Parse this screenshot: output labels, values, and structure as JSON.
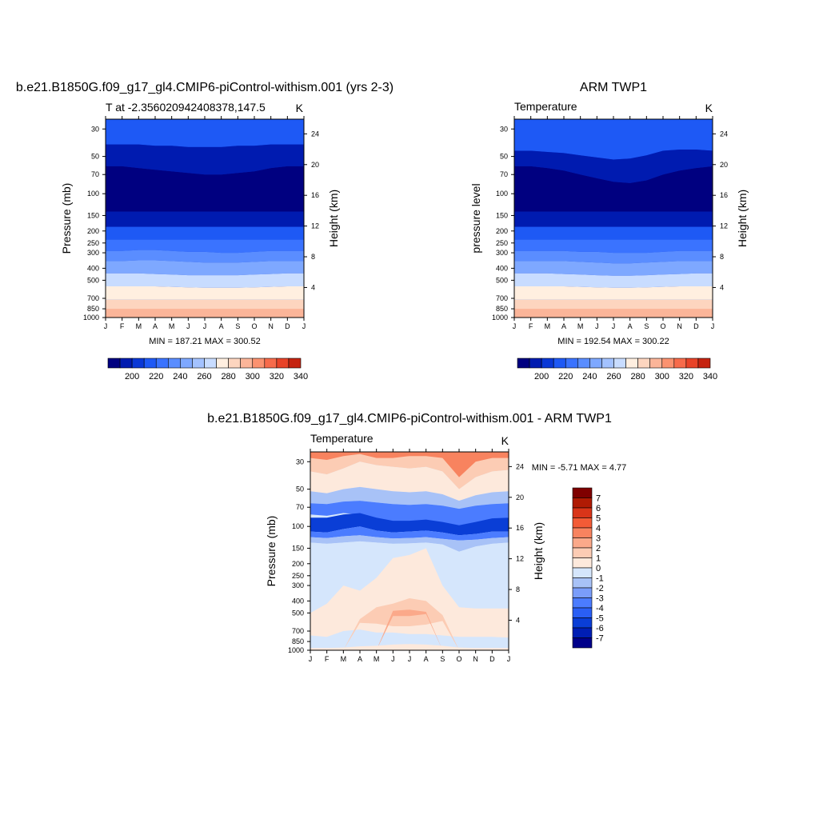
{
  "chart_data": [
    {
      "type": "heatmap",
      "title": "b.e21.B1850G.f09_g17_gl4.CMIP6-piControl-withism.001 (yrs 2-3)",
      "subtitle_left": "T at -2.356020942408378,147.5",
      "subtitle_right": "K",
      "xlabel": "",
      "ylabel": "Pressure (mb)",
      "ylabel_right": "Height (km)",
      "x_ticks": [
        "J",
        "F",
        "M",
        "A",
        "M",
        "J",
        "J",
        "A",
        "S",
        "O",
        "N",
        "D",
        "J"
      ],
      "y_ticks": [
        30,
        50,
        70,
        100,
        150,
        200,
        250,
        300,
        400,
        500,
        700,
        850,
        1000
      ],
      "y_ticks_right": [
        24,
        20,
        16,
        12,
        8,
        4
      ],
      "y_scale": "log",
      "ylim": [
        1000,
        25
      ],
      "stats": "MIN = 187.21 MAX = 300.52",
      "colorbar_labels": [
        "200",
        "220",
        "240",
        "260",
        "280",
        "300",
        "320",
        "340"
      ],
      "levels": [
        190,
        200,
        210,
        220,
        230,
        240,
        250,
        260,
        270,
        280,
        290,
        300,
        310,
        320,
        330,
        340
      ],
      "band_boundaries": [
        {
          "temp": 200,
          "pressure": [
            40,
            40,
            40,
            41,
            41,
            42,
            42,
            42,
            41,
            41,
            40,
            40,
            40
          ]
        },
        {
          "temp": 190,
          "pressure": [
            60,
            60,
            62,
            64,
            66,
            68,
            70,
            70,
            68,
            66,
            62,
            60,
            60
          ]
        },
        {
          "temp": 195,
          "pressure": [
            140,
            140,
            140,
            140,
            140,
            140,
            140,
            140,
            140,
            140,
            140,
            140,
            140
          ]
        },
        {
          "temp": 205,
          "pressure": [
            185,
            185,
            185,
            185,
            185,
            185,
            185,
            185,
            185,
            185,
            185,
            185,
            185
          ]
        },
        {
          "temp": 215,
          "pressure": [
            235,
            235,
            235,
            235,
            235,
            235,
            235,
            235,
            235,
            235,
            235,
            235,
            235
          ]
        },
        {
          "temp": 225,
          "pressure": [
            290,
            290,
            285,
            285,
            290,
            295,
            295,
            300,
            300,
            295,
            290,
            290,
            290
          ]
        },
        {
          "temp": 235,
          "pressure": [
            350,
            350,
            345,
            345,
            350,
            355,
            360,
            360,
            360,
            355,
            350,
            350,
            350
          ]
        },
        {
          "temp": 250,
          "pressure": [
            440,
            440,
            440,
            445,
            450,
            455,
            455,
            455,
            455,
            450,
            445,
            440,
            440
          ]
        },
        {
          "temp": 270,
          "pressure": [
            560,
            560,
            560,
            560,
            565,
            570,
            575,
            575,
            575,
            570,
            565,
            560,
            560
          ]
        },
        {
          "temp": 285,
          "pressure": [
            720,
            720,
            720,
            720,
            720,
            720,
            720,
            720,
            720,
            720,
            720,
            720,
            720
          ]
        }
      ]
    },
    {
      "type": "heatmap",
      "title": "ARM TWP1",
      "subtitle_left": "Temperature",
      "subtitle_right": "K",
      "xlabel": "",
      "ylabel": "pressure level",
      "ylabel_right": "Height (km)",
      "x_ticks": [
        "J",
        "F",
        "M",
        "A",
        "M",
        "J",
        "J",
        "A",
        "S",
        "O",
        "N",
        "D",
        "J"
      ],
      "y_ticks": [
        30,
        50,
        70,
        100,
        150,
        200,
        250,
        300,
        400,
        500,
        700,
        850,
        1000
      ],
      "y_ticks_right": [
        24,
        20,
        16,
        12,
        8,
        4
      ],
      "y_scale": "log",
      "ylim": [
        1000,
        25
      ],
      "stats": "MIN = 192.54 MAX = 300.22",
      "colorbar_labels": [
        "200",
        "220",
        "240",
        "260",
        "280",
        "300",
        "320",
        "340"
      ],
      "levels": [
        190,
        200,
        210,
        220,
        230,
        240,
        250,
        260,
        270,
        280,
        290,
        300,
        310,
        320,
        330,
        340
      ],
      "band_boundaries": [
        {
          "temp": 200,
          "pressure": [
            45,
            45,
            46,
            47,
            49,
            51,
            53,
            52,
            49,
            45,
            44,
            44,
            45
          ]
        },
        {
          "temp": 190,
          "pressure": [
            60,
            60,
            62,
            65,
            70,
            75,
            80,
            82,
            78,
            70,
            65,
            62,
            60
          ]
        },
        {
          "temp": 195,
          "pressure": [
            140,
            140,
            140,
            140,
            140,
            140,
            140,
            140,
            140,
            140,
            140,
            140,
            140
          ]
        },
        {
          "temp": 205,
          "pressure": [
            185,
            185,
            185,
            185,
            185,
            185,
            185,
            185,
            185,
            185,
            185,
            185,
            185
          ]
        },
        {
          "temp": 215,
          "pressure": [
            235,
            235,
            235,
            235,
            235,
            235,
            235,
            235,
            235,
            235,
            235,
            235,
            235
          ]
        },
        {
          "temp": 225,
          "pressure": [
            290,
            290,
            290,
            290,
            295,
            295,
            300,
            300,
            300,
            295,
            290,
            290,
            290
          ]
        },
        {
          "temp": 235,
          "pressure": [
            350,
            350,
            350,
            350,
            355,
            360,
            365,
            365,
            360,
            355,
            350,
            350,
            350
          ]
        },
        {
          "temp": 250,
          "pressure": [
            440,
            440,
            440,
            445,
            450,
            455,
            460,
            460,
            455,
            450,
            445,
            440,
            440
          ]
        },
        {
          "temp": 270,
          "pressure": [
            560,
            560,
            560,
            560,
            565,
            570,
            575,
            575,
            570,
            565,
            560,
            560,
            560
          ]
        },
        {
          "temp": 285,
          "pressure": [
            720,
            720,
            720,
            720,
            720,
            720,
            720,
            720,
            720,
            720,
            720,
            720,
            720
          ]
        }
      ]
    },
    {
      "type": "heatmap",
      "title": "b.e21.B1850G.f09_g17_gl4.CMIP6-piControl-withism.001 - ARM TWP1",
      "subtitle_left": "Temperature",
      "subtitle_right": "K",
      "xlabel": "",
      "ylabel": "Pressure (mb)",
      "ylabel_right": "Height (km)",
      "x_ticks": [
        "J",
        "F",
        "M",
        "A",
        "M",
        "J",
        "J",
        "A",
        "S",
        "O",
        "N",
        "D",
        "J"
      ],
      "y_ticks": [
        30,
        50,
        70,
        100,
        150,
        200,
        250,
        300,
        400,
        500,
        700,
        850,
        1000
      ],
      "y_ticks_right": [
        24,
        20,
        16,
        12,
        8,
        4
      ],
      "y_scale": "log",
      "ylim": [
        1000,
        25
      ],
      "stats": "MIN =  -5.71 MAX =   4.77",
      "colorbar_labels": [
        "7",
        "6",
        "5",
        "4",
        "3",
        "2",
        "1",
        "0",
        "-1",
        "-2",
        "-3",
        "-4",
        "-5",
        "-6",
        "-7"
      ],
      "levels": [
        -7,
        -6,
        -5,
        -4,
        -3,
        -2,
        -1,
        0,
        1,
        2,
        3,
        4,
        5,
        6,
        7
      ],
      "diff_layers": [
        {
          "value": 1.5,
          "pressure_top": [
            25,
            25,
            25,
            25,
            25,
            25,
            25,
            25,
            25,
            25,
            25,
            25,
            25
          ],
          "pressure_bottom": [
            36,
            38,
            34,
            30,
            32,
            33,
            34,
            33,
            36,
            50,
            40,
            36,
            35
          ]
        },
        {
          "value": 3.5,
          "pressure_top": [
            25,
            25,
            25,
            25,
            25,
            25,
            25,
            25,
            25,
            25,
            25,
            25,
            25
          ],
          "pressure_bottom": [
            28,
            29,
            27,
            26,
            28,
            28,
            27,
            27,
            28,
            40,
            30,
            28,
            28
          ]
        },
        {
          "value": 0.5,
          "pressure_top": [
            36,
            38,
            34,
            30,
            32,
            33,
            34,
            33,
            36,
            50,
            40,
            36,
            35
          ],
          "pressure_bottom": [
            52,
            54,
            50,
            48,
            50,
            52,
            53,
            52,
            55,
            62,
            56,
            53,
            52
          ]
        },
        {
          "value": -1.5,
          "pressure_top": [
            52,
            54,
            50,
            48,
            50,
            52,
            53,
            52,
            55,
            62,
            56,
            53,
            52
          ],
          "pressure_bottom": [
            65,
            66,
            63,
            62,
            64,
            66,
            67,
            66,
            68,
            72,
            68,
            66,
            65
          ]
        },
        {
          "value": -3.5,
          "pressure_top": [
            65,
            66,
            63,
            62,
            64,
            66,
            67,
            66,
            68,
            72,
            68,
            66,
            65
          ],
          "pressure_bottom": [
            80,
            82,
            78,
            80,
            90,
            95,
            92,
            90,
            95,
            100,
            95,
            88,
            85
          ]
        },
        {
          "value": -5.5,
          "pressure_top": [
            85,
            85,
            80,
            78,
            85,
            90,
            90,
            88,
            92,
            98,
            92,
            86,
            85
          ],
          "pressure_bottom": [
            110,
            112,
            105,
            100,
            108,
            112,
            110,
            108,
            112,
            118,
            115,
            110,
            110
          ]
        },
        {
          "value": -3.5,
          "pressure_top": [
            110,
            112,
            105,
            100,
            108,
            112,
            110,
            108,
            112,
            118,
            115,
            110,
            110
          ],
          "pressure_bottom": [
            122,
            124,
            120,
            118,
            122,
            125,
            124,
            122,
            126,
            130,
            128,
            124,
            122
          ]
        },
        {
          "value": -1.5,
          "pressure_top": [
            122,
            124,
            120,
            118,
            122,
            125,
            124,
            122,
            126,
            130,
            128,
            124,
            122
          ],
          "pressure_bottom": [
            135,
            138,
            135,
            132,
            135,
            138,
            137,
            135,
            140,
            160,
            145,
            138,
            135
          ]
        },
        {
          "value": -0.5,
          "pressure_top": [
            135,
            138,
            135,
            132,
            135,
            138,
            137,
            135,
            140,
            160,
            145,
            138,
            135
          ],
          "pressure_bottom": [
            1000,
            1000,
            1000,
            1000,
            1000,
            1000,
            1000,
            1000,
            1000,
            1000,
            1000,
            1000,
            1000
          ]
        },
        {
          "value": 0.5,
          "pressure_top": [
            500,
            420,
            300,
            330,
            260,
            180,
            170,
            150,
            300,
            450,
            460,
            460,
            460
          ],
          "pressure_bottom": [
            760,
            780,
            700,
            680,
            720,
            720,
            740,
            740,
            760,
            780,
            780,
            780,
            790
          ]
        },
        {
          "value": 1.5,
          "pressure_top": [
            999,
            999,
            999,
            560,
            450,
            420,
            380,
            400,
            520,
            999,
            999,
            999,
            999
          ],
          "pressure_bottom": [
            999,
            999,
            999,
            600,
            610,
            640,
            640,
            620,
            580,
            999,
            999,
            999,
            999
          ]
        },
        {
          "value": 2.5,
          "pressure_top": [
            999,
            999,
            999,
            999,
            999,
            480,
            470,
            490,
            999,
            999,
            999,
            999,
            999
          ],
          "pressure_bottom": [
            999,
            999,
            999,
            999,
            999,
            530,
            530,
            510,
            999,
            999,
            999,
            999,
            999
          ]
        }
      ]
    }
  ],
  "colors": {
    "temp_palette": [
      "#000080",
      "#001bb0",
      "#0a38d6",
      "#1e59f5",
      "#3a73ff",
      "#5a8dff",
      "#7ea8ff",
      "#a3c2ff",
      "#c8dcff",
      "#ffefe0",
      "#fdd5bf",
      "#fbb599",
      "#fb9270",
      "#f76b4b",
      "#e84328",
      "#c52310",
      "#8f0c00"
    ],
    "diff_palette": [
      "#00008a",
      "#001eb4",
      "#0a3ed6",
      "#2a5ff5",
      "#4b7cff",
      "#7a9dfa",
      "#a8c2f7",
      "#d5e6fc",
      "#fde9dc",
      "#fcccb4",
      "#fba98a",
      "#f8835f",
      "#f35b36",
      "#d93519",
      "#b01b04",
      "#7f0000"
    ]
  }
}
